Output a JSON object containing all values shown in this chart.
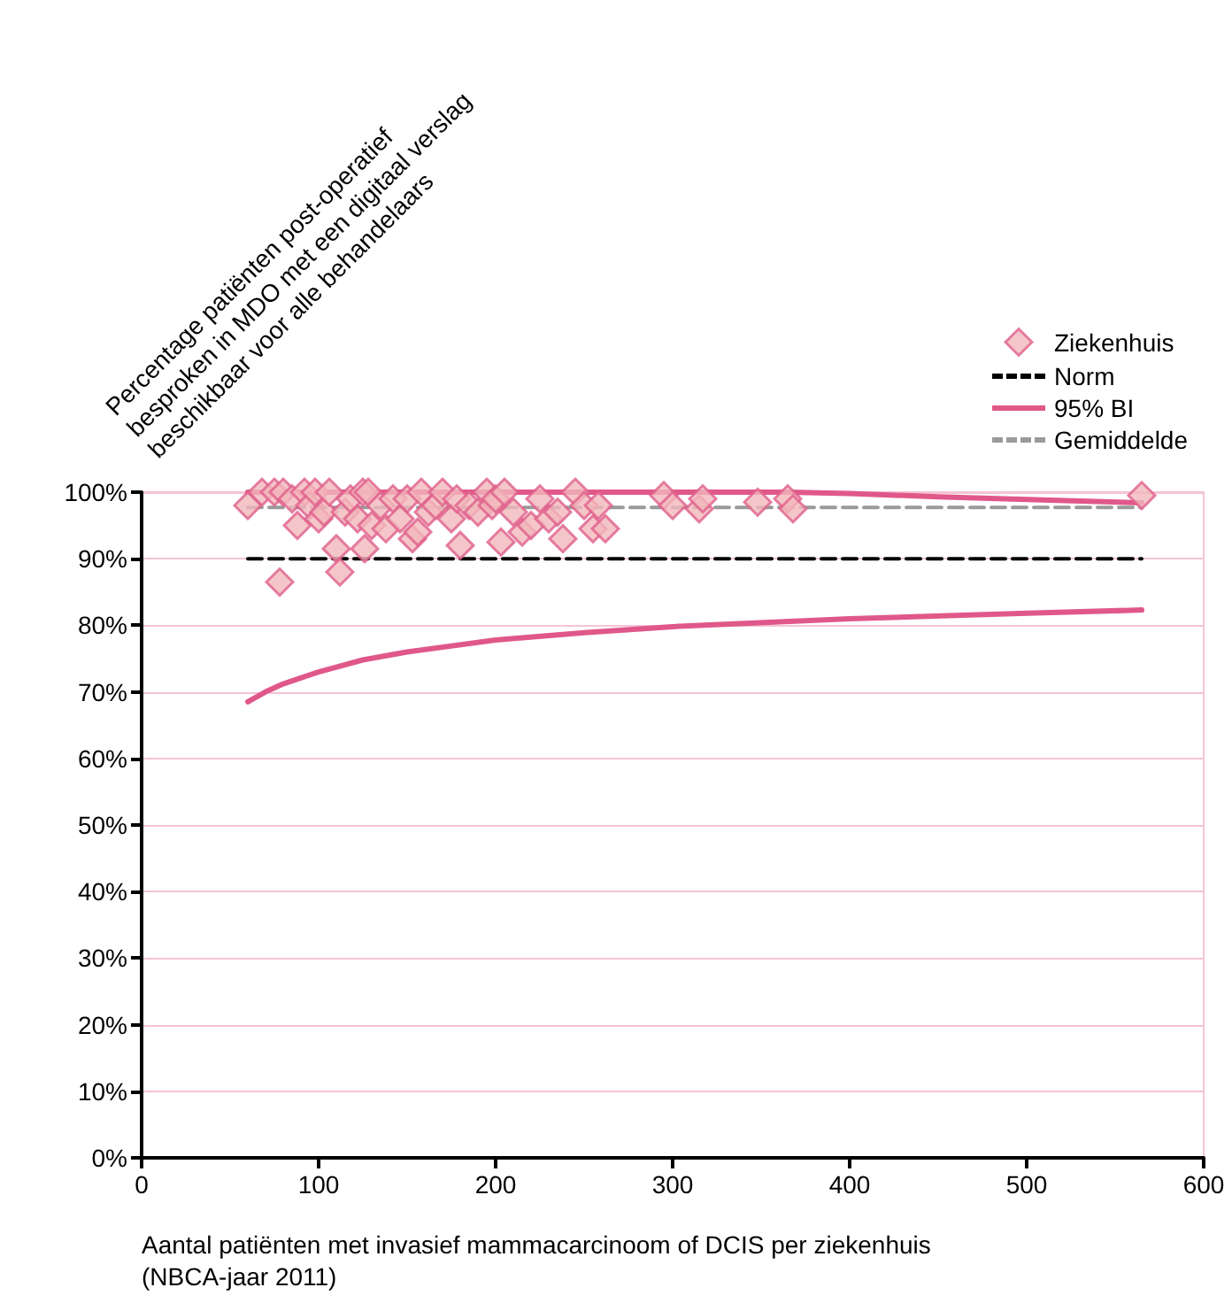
{
  "chart_data": {
    "type": "line",
    "ylabel": "Percentage patiënten post-operatief\nbesproken in MDO met een digitaal verslag\nbeschikbaar voor alle behandelaars",
    "xlabel": "Aantal patiënten met invasief mammacarcinoom of DCIS per ziekenhuis\n(NBCA-jaar 2011)",
    "xlim": [
      0,
      600
    ],
    "xticks": [
      0,
      100,
      200,
      300,
      400,
      500,
      600
    ],
    "ylim": [
      0,
      100
    ],
    "yticks": [
      {
        "value": 0,
        "label": "0%"
      },
      {
        "value": 10,
        "label": "10%"
      },
      {
        "value": 20,
        "label": "20%"
      },
      {
        "value": 30,
        "label": "30%"
      },
      {
        "value": 40,
        "label": "40%"
      },
      {
        "value": 50,
        "label": "50%"
      },
      {
        "value": 60,
        "label": "60%"
      },
      {
        "value": 70,
        "label": "70%"
      },
      {
        "value": 80,
        "label": "80%"
      },
      {
        "value": 90,
        "label": "90%"
      },
      {
        "value": 100,
        "label": "100%"
      }
    ],
    "grid": "y",
    "legend": "top right",
    "series": [
      {
        "name": "Norm",
        "line_style": "dashed",
        "marker": "none",
        "color": "#000000",
        "x": [
          60,
          565
        ],
        "values": [
          90,
          90
        ]
      },
      {
        "name": "95% BI",
        "type": "line",
        "line_style": "solid",
        "marker": "none",
        "color": "#e0588a",
        "x": [
          60,
          80,
          100,
          125,
          150,
          200,
          250,
          300,
          365,
          400,
          450,
          500,
          565
        ],
        "values": [
          100,
          100,
          100,
          100,
          100,
          100,
          100,
          100,
          100,
          99.8,
          99.3,
          98.9,
          98.4
        ]
      },
      {
        "type": "line",
        "line_style": "solid",
        "marker": "none",
        "color": "#e0588a",
        "x": [
          60,
          70,
          80,
          100,
          125,
          150,
          200,
          250,
          300,
          400,
          500,
          565
        ],
        "values": [
          68.5,
          70,
          71.2,
          73,
          74.8,
          76,
          77.8,
          78.9,
          79.8,
          81,
          81.8,
          82.3
        ]
      },
      {
        "name": "Gemiddelde",
        "type": "line",
        "line_style": "dashed",
        "marker": "none",
        "color": "#9a9a9a",
        "x": [
          60,
          565
        ],
        "values": [
          97.7,
          97.7
        ]
      },
      {
        "name": "Ziekenhuis",
        "type": "scatter",
        "marker": "diamond",
        "color": "#f2b8bc",
        "x": [
          60,
          68,
          75,
          78,
          80,
          85,
          88,
          92,
          95,
          98,
          100,
          103,
          106,
          110,
          112,
          115,
          118,
          122,
          125,
          126,
          128,
          130,
          135,
          138,
          142,
          146,
          150,
          153,
          156,
          158,
          162,
          166,
          170,
          175,
          178,
          180,
          185,
          190,
          195,
          198,
          200,
          203,
          205,
          210,
          215,
          220,
          225,
          230,
          235,
          238,
          245,
          250,
          255,
          258,
          262,
          295,
          300,
          315,
          317,
          348,
          365,
          368,
          565
        ],
        "values": [
          98,
          100,
          100,
          86.5,
          100,
          99,
          95,
          100,
          98,
          100,
          96,
          97,
          100,
          91.5,
          88,
          97,
          99,
          96,
          100,
          91.5,
          100,
          95,
          98,
          94.5,
          99,
          96,
          99,
          93,
          94,
          100,
          97,
          98,
          100,
          96,
          99,
          92,
          98,
          97,
          100,
          98,
          99,
          92.5,
          100,
          97,
          94,
          95,
          99,
          96,
          97,
          93,
          100,
          98,
          94.5,
          98,
          94.5,
          99.5,
          98,
          97.5,
          99,
          98.5,
          99,
          97.5,
          99.5
        ]
      }
    ]
  }
}
